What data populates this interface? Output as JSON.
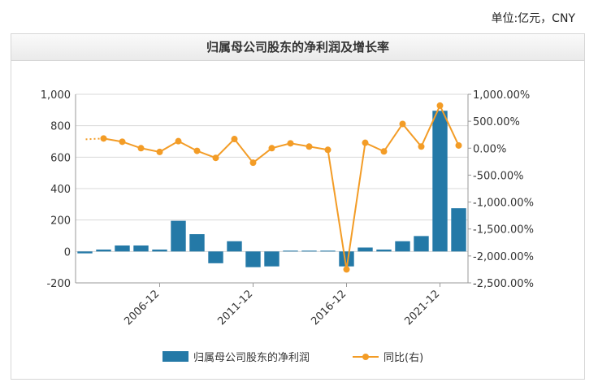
{
  "unit_label": "单位:亿元，CNY",
  "chart_data": {
    "type": "bar",
    "title": "归属母公司股东的净利润及增长率",
    "x_tick_labels": [
      "2006-12",
      "2011-12",
      "2016-12",
      "2021-12"
    ],
    "y_left_ticks": [
      "1,000",
      "800",
      "600",
      "400",
      "200",
      "0",
      "-200"
    ],
    "y_left_range": [
      -200,
      1000
    ],
    "y_right_ticks": [
      "1,000.00%",
      "500.00%",
      "0.00%",
      "-500.00%",
      "-1,000.00%",
      "-1,500.00%",
      "-2,000.00%",
      "-2,500.00%"
    ],
    "y_right_range": [
      -2500,
      1000
    ],
    "grid": true,
    "legend_position": "bottom",
    "series": [
      {
        "name": "归属母公司股东的净利润",
        "kind": "bar",
        "color": "#2479a7",
        "values": [
          -12,
          12,
          38,
          38,
          12,
          195,
          110,
          -75,
          65,
          -100,
          -95,
          5,
          5,
          5,
          -95,
          25,
          12,
          65,
          98,
          895,
          275
        ]
      },
      {
        "name": "同比(右)",
        "kind": "line",
        "color": "#f39c26",
        "values": [
          null,
          180,
          120,
          0,
          -70,
          130,
          -50,
          -180,
          170,
          -270,
          0,
          90,
          30,
          -30,
          -2250,
          100,
          -60,
          450,
          30,
          790,
          50
        ]
      }
    ]
  }
}
